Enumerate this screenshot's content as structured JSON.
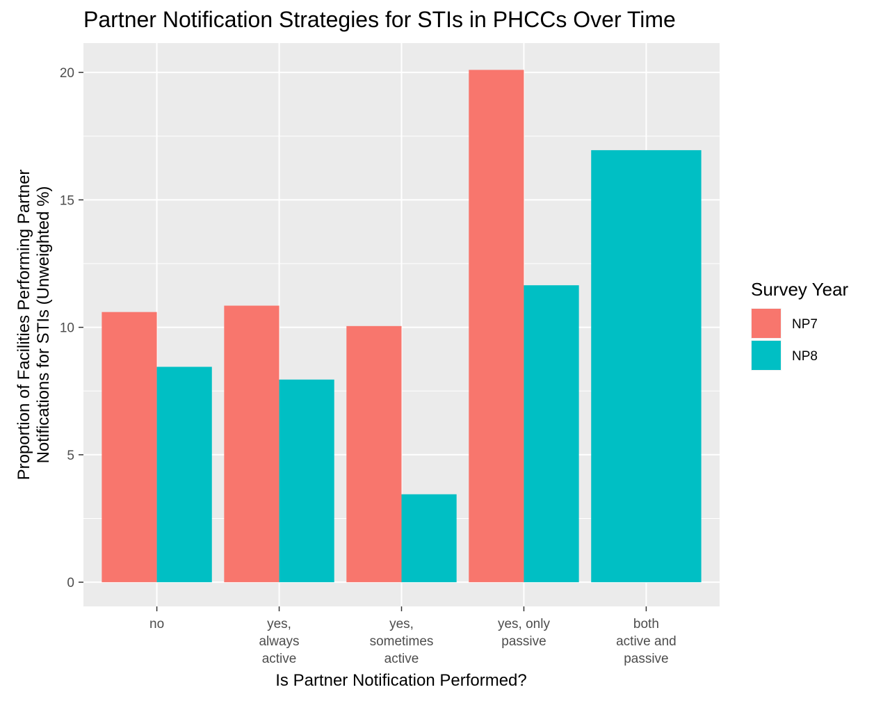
{
  "chart_data": {
    "type": "bar",
    "title": "Partner Notification Strategies for STIs in PHCCs Over Time",
    "xlabel": "Is Partner Notification Performed?",
    "ylabel": [
      "Proportion of Facilities Performing Partner",
      "Notifications for STIs (Unweighted %)"
    ],
    "categories": [
      [
        "no"
      ],
      [
        "yes,",
        "always",
        "active"
      ],
      [
        "yes,",
        "sometimes",
        "active"
      ],
      [
        "yes, only",
        "passive"
      ],
      [
        "both",
        "active and",
        "passive"
      ]
    ],
    "series": [
      {
        "name": "NP7",
        "color": "#F8766D",
        "values": [
          10.6,
          10.85,
          10.05,
          20.1,
          null
        ]
      },
      {
        "name": "NP8",
        "color": "#00BFC4",
        "values": [
          8.45,
          7.95,
          3.45,
          11.65,
          16.95
        ]
      }
    ],
    "ylim": [
      -0.95,
      21.15
    ],
    "yticks": [
      0,
      5,
      10,
      15,
      20
    ],
    "grid": true,
    "legend": {
      "title": "Survey Year",
      "position": "right"
    }
  }
}
